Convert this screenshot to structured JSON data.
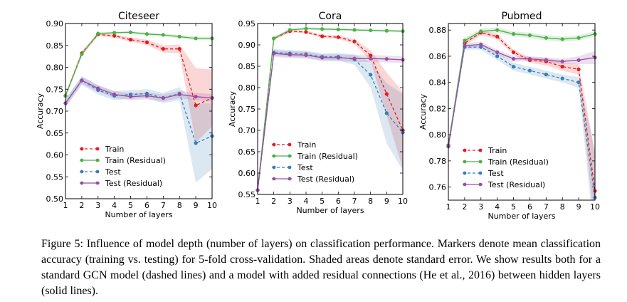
{
  "caption": {
    "label": "Figure 5:",
    "text": "Influence of model depth (number of layers) on classification performance. Markers denote mean classification accuracy (training vs. testing) for 5-fold cross-validation. Shaded areas denote standard error. We show results both for a standard GCN model (dashed lines) and a model with added residual connections (He et al., 2016) between hidden layers (solid lines)."
  },
  "colors": {
    "train": "#e41a1c",
    "train_residual": "#4daf4a",
    "test": "#377eb8",
    "test_residual": "#984ea3"
  },
  "chart_data": [
    {
      "type": "line",
      "title": "Citeseer",
      "xlabel": "Number of layers",
      "ylabel": "Accuracy",
      "x": [
        1,
        2,
        3,
        4,
        5,
        6,
        7,
        8,
        9,
        10
      ],
      "xticks": [
        1,
        2,
        3,
        4,
        5,
        6,
        7,
        8,
        9,
        10
      ],
      "xlim": [
        1,
        10
      ],
      "ylim": [
        0.5,
        0.9
      ],
      "yticks": [
        0.5,
        0.55,
        0.6,
        0.65,
        0.7,
        0.75,
        0.8,
        0.85,
        0.9
      ],
      "ytick_labels": [
        "0.50",
        "0.55",
        "0.60",
        "0.65",
        "0.70",
        "0.75",
        "0.80",
        "0.85",
        "0.90"
      ],
      "series": [
        {
          "name": "Train",
          "key": "train",
          "dashed": true,
          "values": [
            0.735,
            0.832,
            0.875,
            0.872,
            0.863,
            0.857,
            0.842,
            0.842,
            0.713,
            0.73
          ],
          "err": [
            0.005,
            0.005,
            0.004,
            0.004,
            0.005,
            0.006,
            0.008,
            0.01,
            0.085,
            0.065
          ]
        },
        {
          "name": "Train (Residual)",
          "key": "train_residual",
          "dashed": false,
          "values": [
            0.735,
            0.83,
            0.877,
            0.879,
            0.88,
            0.876,
            0.874,
            0.87,
            0.866,
            0.866
          ],
          "err": [
            0.004,
            0.004,
            0.003,
            0.003,
            0.003,
            0.003,
            0.003,
            0.004,
            0.004,
            0.004
          ]
        },
        {
          "name": "Test",
          "key": "test",
          "dashed": true,
          "values": [
            0.718,
            0.77,
            0.748,
            0.735,
            0.738,
            0.74,
            0.73,
            0.74,
            0.627,
            0.643
          ],
          "err": [
            0.01,
            0.01,
            0.01,
            0.01,
            0.01,
            0.01,
            0.012,
            0.015,
            0.09,
            0.075
          ]
        },
        {
          "name": "Test (Residual)",
          "key": "test_residual",
          "dashed": false,
          "values": [
            0.718,
            0.77,
            0.752,
            0.738,
            0.733,
            0.735,
            0.73,
            0.738,
            0.733,
            0.73
          ],
          "err": [
            0.008,
            0.008,
            0.008,
            0.008,
            0.008,
            0.008,
            0.008,
            0.008,
            0.009,
            0.009
          ]
        }
      ],
      "legend": "lower-left"
    },
    {
      "type": "line",
      "title": "Cora",
      "xlabel": "Number of layers",
      "ylabel": "Accuracy",
      "x": [
        1,
        2,
        3,
        4,
        5,
        6,
        7,
        8,
        9,
        10
      ],
      "xticks": [
        1,
        2,
        3,
        4,
        5,
        6,
        7,
        8,
        9,
        10
      ],
      "xlim": [
        1,
        10
      ],
      "ylim": [
        0.55,
        0.95
      ],
      "yticks": [
        0.55,
        0.6,
        0.65,
        0.7,
        0.75,
        0.8,
        0.85,
        0.9,
        0.95
      ],
      "ytick_labels": [
        "0.55",
        "0.60",
        "0.65",
        "0.70",
        "0.75",
        "0.80",
        "0.85",
        "0.90",
        "0.95"
      ],
      "series": [
        {
          "name": "Train",
          "key": "train",
          "dashed": true,
          "values": [
            0.56,
            0.915,
            0.932,
            0.93,
            0.92,
            0.918,
            0.908,
            0.875,
            0.785,
            0.7
          ],
          "err": [
            0.01,
            0.004,
            0.003,
            0.003,
            0.004,
            0.004,
            0.006,
            0.012,
            0.05,
            0.09
          ]
        },
        {
          "name": "Train (Residual)",
          "key": "train_residual",
          "dashed": false,
          "values": [
            0.56,
            0.915,
            0.935,
            0.938,
            0.937,
            0.936,
            0.935,
            0.934,
            0.933,
            0.932
          ],
          "err": [
            0.01,
            0.003,
            0.003,
            0.003,
            0.003,
            0.003,
            0.003,
            0.003,
            0.003,
            0.003
          ]
        },
        {
          "name": "Test",
          "key": "test",
          "dashed": true,
          "values": [
            0.56,
            0.882,
            0.88,
            0.878,
            0.872,
            0.872,
            0.866,
            0.83,
            0.74,
            0.695
          ],
          "err": [
            0.01,
            0.008,
            0.008,
            0.008,
            0.008,
            0.009,
            0.012,
            0.03,
            0.07,
            0.09
          ]
        },
        {
          "name": "Test (Residual)",
          "key": "test_residual",
          "dashed": false,
          "values": [
            0.56,
            0.88,
            0.877,
            0.876,
            0.87,
            0.87,
            0.868,
            0.868,
            0.867,
            0.865
          ],
          "err": [
            0.01,
            0.008,
            0.008,
            0.008,
            0.008,
            0.008,
            0.008,
            0.008,
            0.008,
            0.008
          ]
        }
      ],
      "legend": "lower-left"
    },
    {
      "type": "line",
      "title": "Pubmed",
      "xlabel": "Number of layers",
      "ylabel": "Accuracy",
      "x": [
        1,
        2,
        3,
        4,
        5,
        6,
        7,
        8,
        9,
        10
      ],
      "xticks": [
        1,
        2,
        3,
        4,
        5,
        6,
        7,
        8,
        9,
        10
      ],
      "xlim": [
        1,
        10
      ],
      "ylim": [
        0.75,
        0.885
      ],
      "yticks": [
        0.76,
        0.78,
        0.8,
        0.82,
        0.84,
        0.86,
        0.88
      ],
      "ytick_labels": [
        "0.76",
        "0.78",
        "0.80",
        "0.82",
        "0.84",
        "0.86",
        "0.88"
      ],
      "series": [
        {
          "name": "Train",
          "key": "train",
          "dashed": true,
          "values": [
            0.792,
            0.87,
            0.878,
            0.875,
            0.863,
            0.857,
            0.856,
            0.852,
            0.85,
            0.757
          ],
          "err": [
            0.003,
            0.002,
            0.002,
            0.002,
            0.002,
            0.002,
            0.003,
            0.003,
            0.004,
            0.03
          ]
        },
        {
          "name": "Train (Residual)",
          "key": "train_residual",
          "dashed": false,
          "values": [
            0.792,
            0.872,
            0.879,
            0.88,
            0.877,
            0.876,
            0.874,
            0.873,
            0.874,
            0.877
          ],
          "err": [
            0.002,
            0.002,
            0.002,
            0.002,
            0.002,
            0.002,
            0.002,
            0.002,
            0.002,
            0.002
          ]
        },
        {
          "name": "Test",
          "key": "test",
          "dashed": true,
          "values": [
            0.791,
            0.867,
            0.867,
            0.86,
            0.852,
            0.849,
            0.846,
            0.843,
            0.84,
            0.752
          ],
          "err": [
            0.003,
            0.002,
            0.002,
            0.003,
            0.003,
            0.003,
            0.003,
            0.003,
            0.004,
            0.035
          ]
        },
        {
          "name": "Test (Residual)",
          "key": "test_residual",
          "dashed": false,
          "values": [
            0.791,
            0.868,
            0.869,
            0.863,
            0.858,
            0.858,
            0.857,
            0.856,
            0.857,
            0.859
          ],
          "err": [
            0.003,
            0.002,
            0.002,
            0.002,
            0.002,
            0.002,
            0.002,
            0.002,
            0.003,
            0.005
          ]
        }
      ],
      "legend": "lower-left"
    }
  ]
}
